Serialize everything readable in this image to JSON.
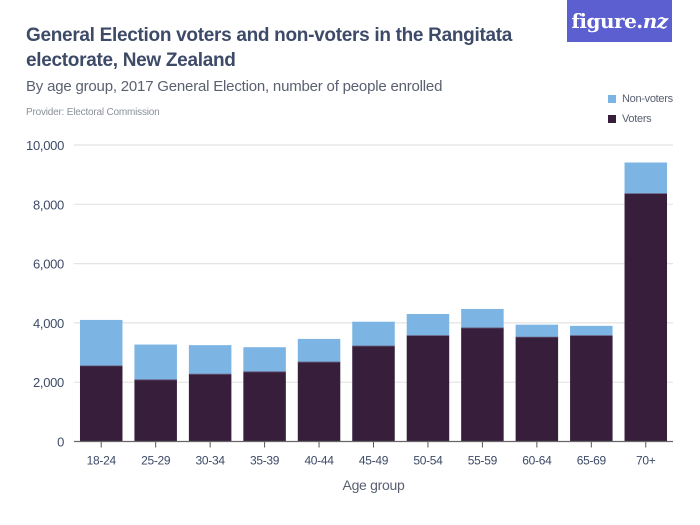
{
  "logo": {
    "main": "figure.",
    "suffix": "nz"
  },
  "chart_data": {
    "type": "bar",
    "stacked": true,
    "title": "General Election voters and non-voters in the Rangitata electorate, New Zealand",
    "subtitle": "By age group, 2017 General Election, number of people enrolled",
    "provider": "Provider: Electoral Commission",
    "xlabel": "Age group",
    "ylabel": "",
    "ylim": [
      0,
      10000
    ],
    "yticks": [
      0,
      2000,
      4000,
      6000,
      8000,
      10000
    ],
    "ytick_labels": [
      "0",
      "2,000",
      "4,000",
      "6,000",
      "8,000",
      "10,000"
    ],
    "grid": true,
    "legend_position": "top-right",
    "categories": [
      "18-24",
      "25-29",
      "30-34",
      "35-39",
      "40-44",
      "45-49",
      "50-54",
      "55-59",
      "60-64",
      "65-69",
      "70+"
    ],
    "series": [
      {
        "name": "Voters",
        "color": "#371f3c",
        "values": [
          2550,
          2080,
          2270,
          2350,
          2680,
          3220,
          3570,
          3830,
          3520,
          3570,
          8360
        ]
      },
      {
        "name": "Non-voters",
        "color": "#7cb5e3",
        "values": [
          1550,
          1190,
          980,
          830,
          780,
          820,
          730,
          640,
          420,
          330,
          1050
        ]
      }
    ],
    "legend": [
      {
        "name": "Non-voters",
        "color": "#7cb5e3"
      },
      {
        "name": "Voters",
        "color": "#371f3c"
      }
    ]
  }
}
